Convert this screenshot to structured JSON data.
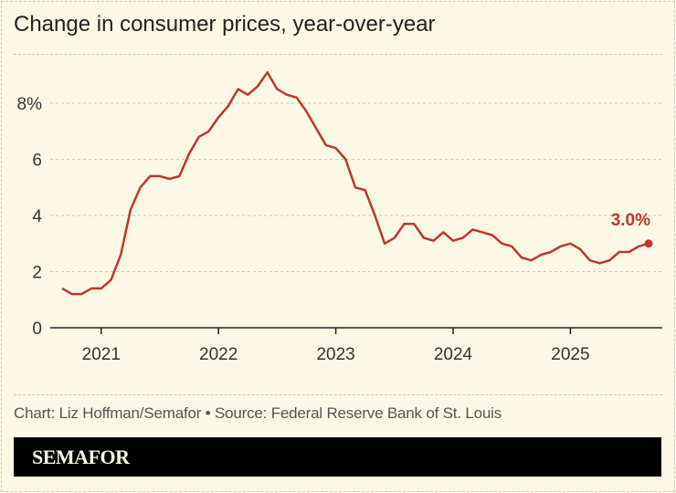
{
  "chart_data": {
    "type": "line",
    "title": "Change in consumer prices, year-over-year",
    "xlabel": "",
    "ylabel": "",
    "x_start": "2020-09",
    "x_end": "2025-09",
    "x_frequency": "monthly",
    "x_ticks": [
      "2021",
      "2022",
      "2023",
      "2024",
      "2025"
    ],
    "y_ticks": [
      "0",
      "2",
      "4",
      "6",
      "8%"
    ],
    "y_tick_values": [
      0,
      2,
      4,
      6,
      8
    ],
    "ylim": [
      0,
      9.75
    ],
    "grid": "horizontal dashed",
    "line_color": "#c0352b",
    "series": [
      {
        "values": [
          1.4,
          1.2,
          1.2,
          1.4,
          1.4,
          1.7,
          2.6,
          4.2,
          5.0,
          5.4,
          5.4,
          5.3,
          5.4,
          6.2,
          6.8,
          7.0,
          7.5,
          7.9,
          8.5,
          8.3,
          8.6,
          9.1,
          8.5,
          8.3,
          8.2,
          7.7,
          7.1,
          6.5,
          6.4,
          6.0,
          5.0,
          4.9,
          4.0,
          3.0,
          3.2,
          3.7,
          3.7,
          3.2,
          3.1,
          3.4,
          3.1,
          3.2,
          3.5,
          3.4,
          3.3,
          3.0,
          2.9,
          2.5,
          2.4,
          2.6,
          2.7,
          2.9,
          3.0,
          2.8,
          2.4,
          2.3,
          2.4,
          2.7,
          2.7,
          2.9,
          3.0
        ]
      }
    ],
    "annotation": "3.0%",
    "source": "Chart: Liz Hoffman/Semafor • Source: Federal Reserve Bank of St. Louis"
  },
  "brand": {
    "logo_text": "SEMAFOR"
  }
}
